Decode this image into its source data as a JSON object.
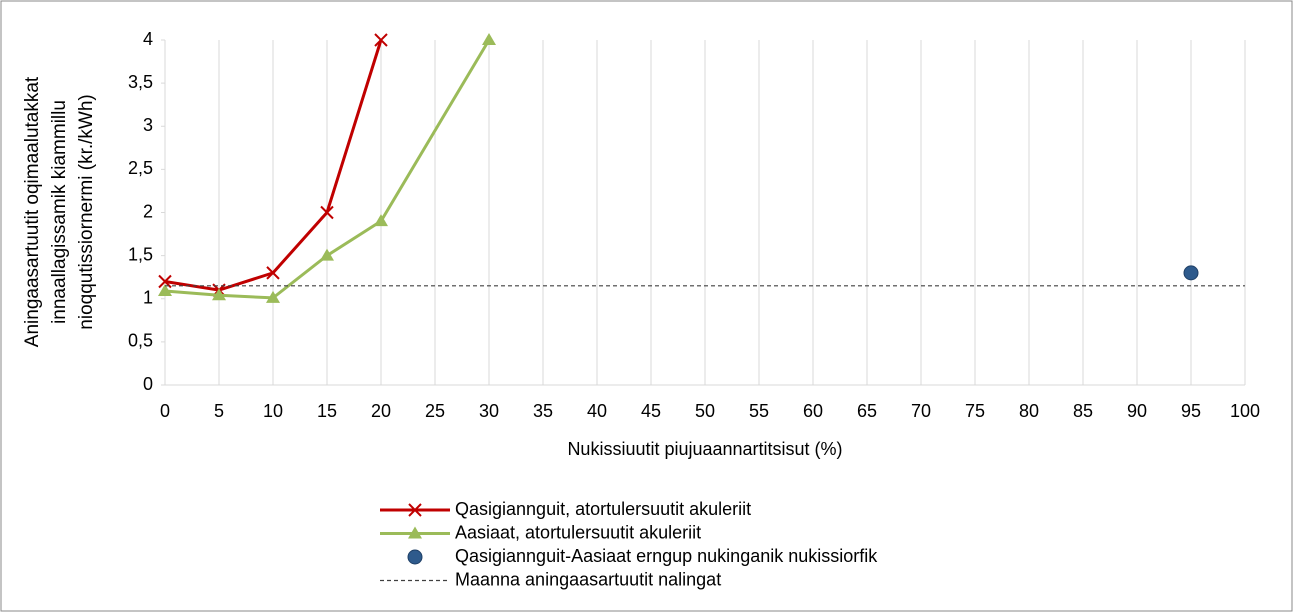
{
  "chart_data": {
    "type": "line",
    "xlabel": "Nukissiuutit piujuaannartitsisut (%)",
    "ylabel": [
      "Aningaasartuutit oqimaalutakkat",
      "innaallagissamik kiammillu",
      "nioqqutissiornermi (kr./kWh)"
    ],
    "xlim": [
      0,
      100
    ],
    "xticks": [
      0,
      5,
      10,
      15,
      20,
      25,
      30,
      35,
      40,
      45,
      50,
      55,
      60,
      65,
      70,
      75,
      80,
      85,
      90,
      95,
      100
    ],
    "ylim": [
      0,
      4
    ],
    "yticks": [
      0,
      {
        "value": 0.5,
        "label": "0,5"
      },
      1,
      {
        "value": 1.5,
        "label": "1,5"
      },
      2,
      {
        "value": 2.5,
        "label": "2,5"
      },
      3,
      {
        "value": 3.5,
        "label": "3,5"
      },
      4
    ],
    "grid": "x",
    "legend": "bottom",
    "series": [
      {
        "name": "Qasigiannguit, atortulersuutit akuleriit",
        "color": "#c00000",
        "marker": "x",
        "line": "solid",
        "x": [
          0,
          5,
          10,
          15,
          20
        ],
        "values": [
          1.2,
          1.1,
          1.3,
          2.0,
          4.0
        ]
      },
      {
        "name": "Aasiaat, atortulersuutit akuleriit",
        "color": "#9bbb59",
        "marker": "triangle",
        "line": "solid",
        "x": [
          0,
          5,
          10,
          15,
          20,
          30
        ],
        "values": [
          1.09,
          1.04,
          1.01,
          1.5,
          1.9,
          4.0
        ]
      },
      {
        "name": "Qasigiannguit-Aasiaat erngup nukinganik nukissiorfik",
        "color": "#2e5a8c",
        "marker": "circle",
        "line": "none",
        "x": [
          95
        ],
        "values": [
          1.3
        ]
      },
      {
        "name": "Maanna aningaasartuutit nalingat",
        "color": "#404040",
        "marker": "none",
        "line": "dashed",
        "x": [
          0,
          100
        ],
        "values": [
          1.15,
          1.15
        ]
      }
    ]
  }
}
